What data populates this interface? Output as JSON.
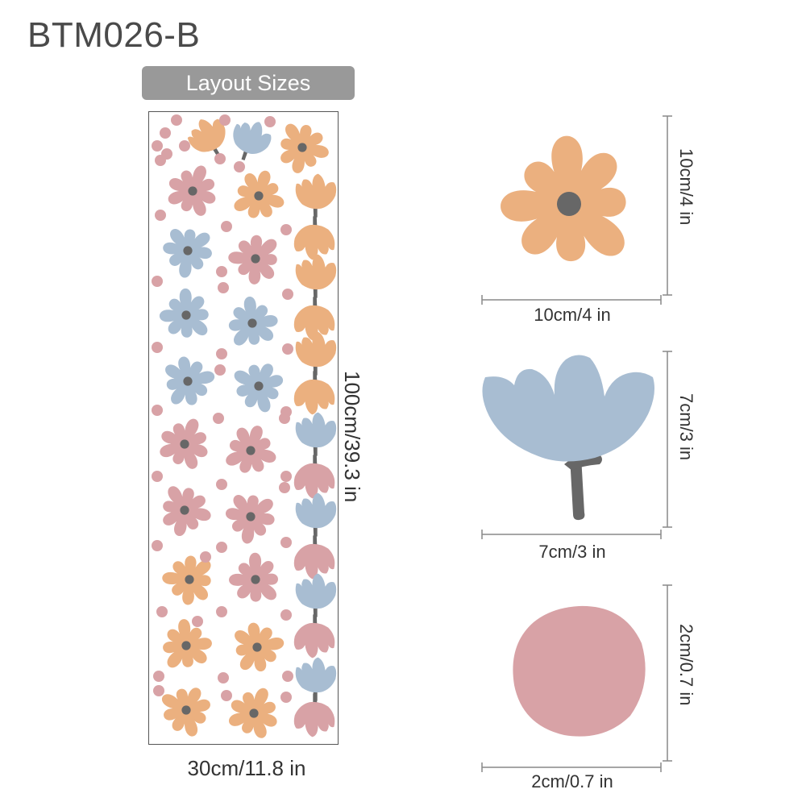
{
  "product_code": "BTM026-B",
  "layout_badge": "Layout Sizes",
  "layout": {
    "width_label": "30cm/11.8 in",
    "height_label": "100cm/39.3 in"
  },
  "stickers": {
    "daisy": {
      "width_label": "10cm/4 in",
      "height_label": "10cm/4 in"
    },
    "tulip": {
      "width_label": "7cm/3 in",
      "height_label": "7cm/3 in"
    },
    "dot": {
      "width_label": "2cm/0.7 in",
      "height_label": "2cm/0.7 in"
    }
  },
  "colors": {
    "orange": "#ebb07f",
    "blue": "#a8bdd2",
    "pink": "#d8a2a6",
    "stem": "#676767",
    "badge": "#999999",
    "dimension_line": "#888888"
  }
}
